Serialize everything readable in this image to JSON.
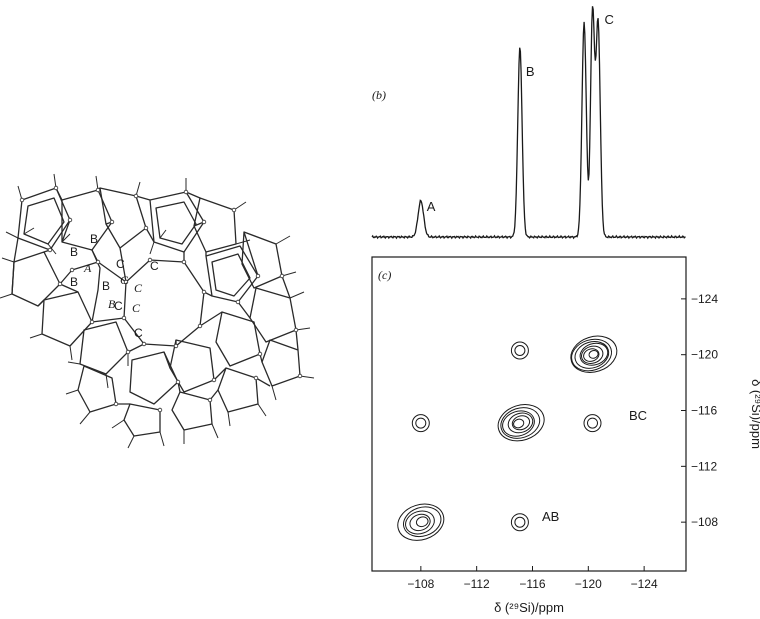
{
  "framework": {
    "site_labels": [
      {
        "text": "B"
      },
      {
        "text": "B"
      },
      {
        "text": "B"
      },
      {
        "text": "B"
      },
      {
        "text": "A"
      },
      {
        "text": "B"
      },
      {
        "text": "C"
      },
      {
        "text": "C"
      },
      {
        "text": "C"
      },
      {
        "text": "C"
      },
      {
        "text": "C"
      },
      {
        "text": "C"
      },
      {
        "text": "C"
      }
    ]
  },
  "panel_b": {
    "label": "(b)",
    "peak_labels": [
      "A",
      "B",
      "C"
    ]
  },
  "panel_c": {
    "label": "(c)",
    "xlabel": "δ (²⁹Si)/ppm",
    "ylabel": "δ (²⁹Si)/ppm",
    "x_ticks": [
      "−108",
      "−112",
      "−116",
      "−120",
      "−124"
    ],
    "y_ticks": [
      "−124",
      "−120",
      "−116",
      "−112",
      "−108"
    ],
    "cross_peak_labels": [
      "BC",
      "AB"
    ]
  },
  "chart_data": [
    {
      "type": "line",
      "panel": "(b)",
      "description_units": "ppm",
      "x_range": [
        -104.5,
        -127
      ],
      "peaks": [
        {
          "label": "A",
          "x": -108.0,
          "height": 0.16
        },
        {
          "label": "B",
          "x": -115.1,
          "height": 0.84
        },
        {
          "label": "C",
          "x": -119.7,
          "height": 0.95
        },
        {
          "label": "C",
          "x": -120.3,
          "height": 0.99
        },
        {
          "label": "C",
          "x": -120.7,
          "height": 0.95
        }
      ]
    },
    {
      "type": "heatmap",
      "panel": "(c)",
      "xlim": [
        -104.5,
        -127
      ],
      "ylim": [
        -104.5,
        -127
      ],
      "x_ticks": [
        -108,
        -112,
        -116,
        -120,
        -124
      ],
      "y_ticks": [
        -108,
        -112,
        -116,
        -120,
        -124
      ],
      "contour_peaks": [
        {
          "x": -108.0,
          "y": -108.0,
          "levels": 5
        },
        {
          "x": -115.1,
          "y": -115.1,
          "levels": 6
        },
        {
          "x": -120.3,
          "y": -120.0,
          "levels": 7
        },
        {
          "x": -108.0,
          "y": -115.1,
          "levels": 2
        },
        {
          "x": -115.1,
          "y": -108.0,
          "levels": 2
        },
        {
          "x": -115.1,
          "y": -120.3,
          "levels": 2
        },
        {
          "x": -120.3,
          "y": -115.1,
          "levels": 2
        }
      ]
    }
  ]
}
